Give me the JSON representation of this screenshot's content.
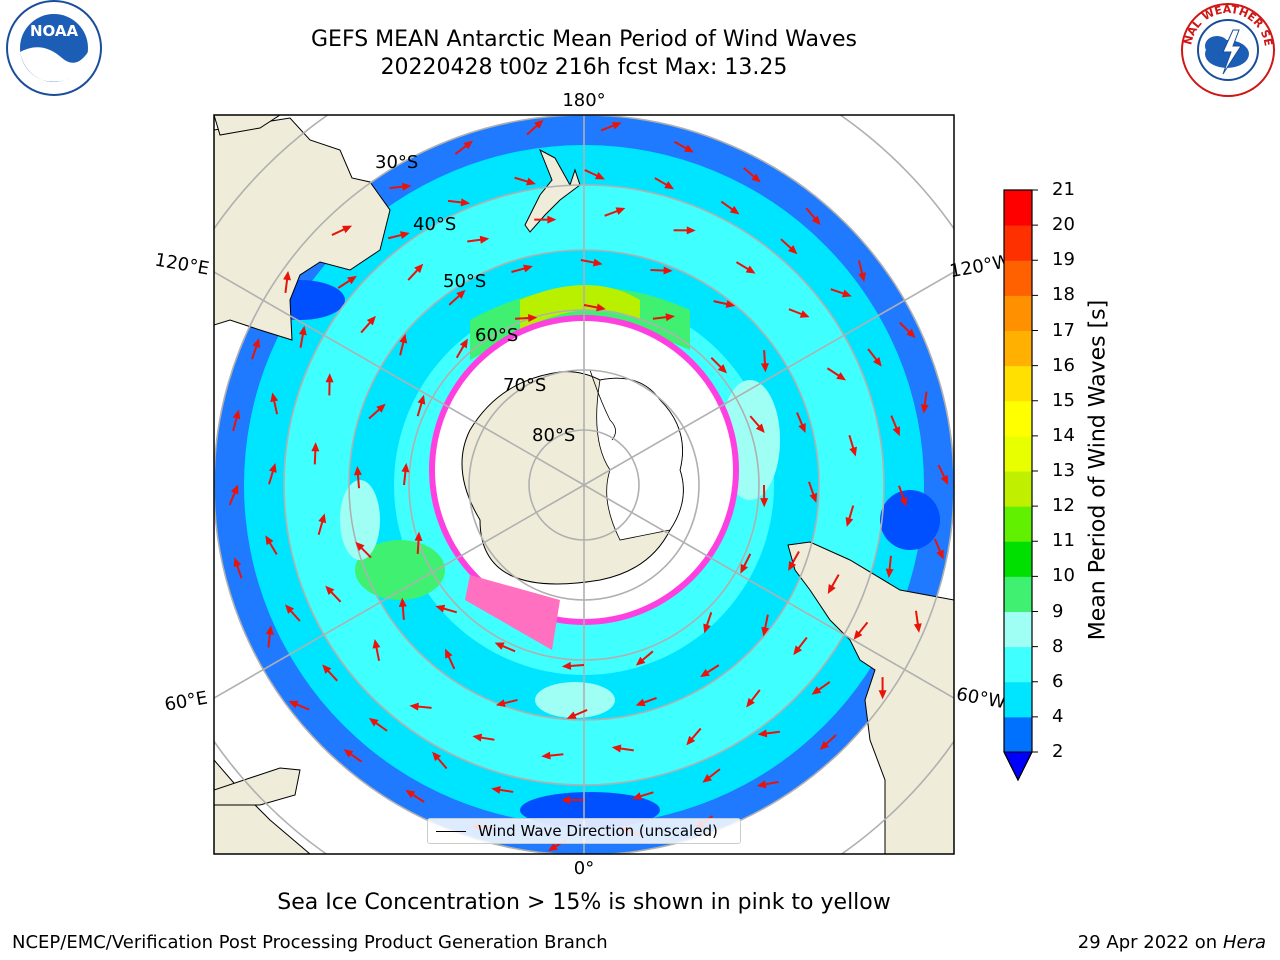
{
  "title": {
    "line1": "GEFS MEAN Antarctic Mean Period of Wind Waves",
    "line2": "20220428 t00z 216h fcst   Max: 13.25"
  },
  "logos": {
    "left": {
      "icon": "noaa-logo",
      "text": "NOAA"
    },
    "right": {
      "icon": "nws-logo",
      "text": "NATIONAL WEATHER SERVICE"
    }
  },
  "map": {
    "projection": "south-polar-stereographic",
    "longitude_labels": [
      "180°",
      "120°E",
      "120°W",
      "60°E",
      "60°W",
      "0°"
    ],
    "latitude_labels": [
      "30°S",
      "40°S",
      "50°S",
      "60°S",
      "70°S",
      "80°S"
    ],
    "land_color": "#efedd9",
    "ocean_outside_color": "#ffffff",
    "arrow_color": "#e8140c"
  },
  "legend": {
    "label": "Wind Wave Direction (unscaled)"
  },
  "colorbar": {
    "label": "Mean Period of Wind Waves [s]",
    "ticks": [
      "2",
      "4",
      "6",
      "8",
      "9",
      "10",
      "11",
      "12",
      "13",
      "14",
      "15",
      "16",
      "17",
      "18",
      "19",
      "20",
      "21"
    ],
    "colors": [
      "#0070ff",
      "#00e5ff",
      "#40ffff",
      "#a0fff5",
      "#40f070",
      "#00e000",
      "#60f000",
      "#c0f000",
      "#e8ff00",
      "#ffff00",
      "#ffe000",
      "#ffb000",
      "#ff9000",
      "#ff6000",
      "#ff3000",
      "#ff0000"
    ],
    "under_color": "#0000ff",
    "extend": "min"
  },
  "footnote": "Sea Ice Concentration > 15% is shown in pink to yellow",
  "credits": {
    "left": "NCEP/EMC/Verification Post Processing Product Generation Branch",
    "right_date": "29 Apr 2022 on ",
    "right_host": "Hera"
  }
}
